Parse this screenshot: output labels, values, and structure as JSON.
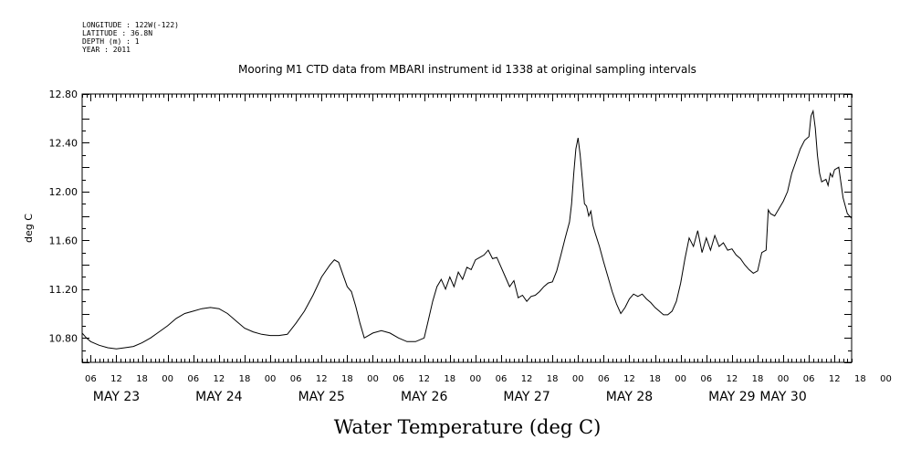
{
  "header": {
    "longitude": "LONGITUDE : 122W(-122)",
    "latitude": "LATITUDE : 36.8N",
    "depth": "DEPTH (m) : 1",
    "year": "YEAR : 2011"
  },
  "chart_data": {
    "type": "line",
    "title": "Mooring M1 CTD data from MBARI instrument id 1338 at original sampling intervals",
    "xlabel": "Water Temperature (deg C)",
    "ylabel": "deg C",
    "ylim": [
      10.6,
      12.8
    ],
    "yticks": [
      "10.80",
      "11.20",
      "11.60",
      "12.00",
      "12.40",
      "12.80"
    ],
    "x_hour_labels": [
      "06",
      "12",
      "18",
      "00",
      "06",
      "12",
      "18",
      "00",
      "06",
      "12",
      "18",
      "00",
      "06",
      "12",
      "18",
      "00",
      "06",
      "12",
      "18",
      "00",
      "06",
      "12",
      "18",
      "00",
      "06",
      "12",
      "18",
      "00",
      "06",
      "12",
      "18",
      "00"
    ],
    "x_day_labels": [
      "MAY 23",
      "MAY 24",
      "MAY 25",
      "MAY 26",
      "MAY 27",
      "MAY 28",
      "MAY 29",
      "MAY 30"
    ],
    "x_unit": "hours since 2011-05-23 00:00",
    "xlim": [
      4.0,
      184.0
    ],
    "grid": false,
    "series": [
      {
        "name": "",
        "points": [
          [
            4.0,
            10.84
          ],
          [
            5,
            10.8
          ],
          [
            6,
            10.77
          ],
          [
            8,
            10.74
          ],
          [
            10,
            10.72
          ],
          [
            12,
            10.71
          ],
          [
            14,
            10.72
          ],
          [
            16,
            10.73
          ],
          [
            18,
            10.76
          ],
          [
            20,
            10.8
          ],
          [
            22,
            10.85
          ],
          [
            24,
            10.9
          ],
          [
            26,
            10.96
          ],
          [
            28,
            11.0
          ],
          [
            30,
            11.02
          ],
          [
            32,
            11.04
          ],
          [
            34,
            11.05
          ],
          [
            36,
            11.04
          ],
          [
            38,
            11.0
          ],
          [
            40,
            10.94
          ],
          [
            42,
            10.88
          ],
          [
            44,
            10.85
          ],
          [
            46,
            10.83
          ],
          [
            48,
            10.82
          ],
          [
            50,
            10.82
          ],
          [
            52,
            10.83
          ],
          [
            54,
            10.92
          ],
          [
            56,
            11.02
          ],
          [
            58,
            11.15
          ],
          [
            60,
            11.3
          ],
          [
            62,
            11.4
          ],
          [
            63,
            11.44
          ],
          [
            64,
            11.42
          ],
          [
            65,
            11.32
          ],
          [
            66,
            11.22
          ],
          [
            67,
            11.18
          ],
          [
            68,
            11.06
          ],
          [
            69,
            10.92
          ],
          [
            70,
            10.8
          ],
          [
            72,
            10.84
          ],
          [
            74,
            10.86
          ],
          [
            76,
            10.84
          ],
          [
            78,
            10.8
          ],
          [
            80,
            10.77
          ],
          [
            82,
            10.77
          ],
          [
            84,
            10.8
          ],
          [
            85,
            10.95
          ],
          [
            86,
            11.1
          ],
          [
            87,
            11.22
          ],
          [
            88,
            11.28
          ],
          [
            89,
            11.2
          ],
          [
            90,
            11.3
          ],
          [
            91,
            11.22
          ],
          [
            92,
            11.34
          ],
          [
            93,
            11.28
          ],
          [
            94,
            11.38
          ],
          [
            95,
            11.36
          ],
          [
            96,
            11.44
          ],
          [
            97,
            11.46
          ],
          [
            98,
            11.48
          ],
          [
            99,
            11.52
          ],
          [
            100,
            11.45
          ],
          [
            101,
            11.46
          ],
          [
            102,
            11.38
          ],
          [
            103,
            11.3
          ],
          [
            104,
            11.22
          ],
          [
            105,
            11.27
          ],
          [
            106,
            11.13
          ],
          [
            107,
            11.15
          ],
          [
            108,
            11.1
          ],
          [
            109,
            11.14
          ],
          [
            110,
            11.15
          ],
          [
            111,
            11.18
          ],
          [
            112,
            11.22
          ],
          [
            113,
            11.25
          ],
          [
            114,
            11.26
          ],
          [
            115,
            11.35
          ],
          [
            116,
            11.48
          ],
          [
            117,
            11.62
          ],
          [
            118,
            11.75
          ],
          [
            118.5,
            11.9
          ],
          [
            119,
            12.15
          ],
          [
            119.5,
            12.35
          ],
          [
            120,
            12.44
          ],
          [
            120.5,
            12.3
          ],
          [
            121,
            12.1
          ],
          [
            121.5,
            11.9
          ],
          [
            122,
            11.88
          ],
          [
            122.5,
            11.8
          ],
          [
            123,
            11.84
          ],
          [
            123.5,
            11.72
          ],
          [
            124,
            11.66
          ],
          [
            125,
            11.55
          ],
          [
            126,
            11.42
          ],
          [
            127,
            11.3
          ],
          [
            128,
            11.18
          ],
          [
            129,
            11.08
          ],
          [
            130,
            11.0
          ],
          [
            131,
            11.05
          ],
          [
            132,
            11.12
          ],
          [
            133,
            11.16
          ],
          [
            134,
            11.14
          ],
          [
            135,
            11.16
          ],
          [
            136,
            11.12
          ],
          [
            137,
            11.09
          ],
          [
            138,
            11.05
          ],
          [
            139,
            11.02
          ],
          [
            140,
            10.99
          ],
          [
            141,
            10.99
          ],
          [
            142,
            11.02
          ],
          [
            143,
            11.1
          ],
          [
            144,
            11.25
          ],
          [
            145,
            11.45
          ],
          [
            146,
            11.62
          ],
          [
            147,
            11.55
          ],
          [
            148,
            11.68
          ],
          [
            149,
            11.5
          ],
          [
            150,
            11.62
          ],
          [
            151,
            11.52
          ],
          [
            152,
            11.64
          ],
          [
            153,
            11.55
          ],
          [
            154,
            11.58
          ],
          [
            155,
            11.52
          ],
          [
            156,
            11.53
          ],
          [
            157,
            11.48
          ],
          [
            158,
            11.45
          ],
          [
            159,
            11.4
          ],
          [
            160,
            11.36
          ],
          [
            161,
            11.33
          ],
          [
            162,
            11.35
          ],
          [
            163,
            11.5
          ],
          [
            164,
            11.52
          ],
          [
            164.5,
            11.85
          ],
          [
            165,
            11.82
          ],
          [
            166,
            11.8
          ],
          [
            167,
            11.86
          ],
          [
            168,
            11.92
          ],
          [
            169,
            12.0
          ],
          [
            170,
            12.15
          ],
          [
            171,
            12.25
          ],
          [
            172,
            12.35
          ],
          [
            173,
            12.42
          ],
          [
            174,
            12.45
          ],
          [
            174.5,
            12.62
          ],
          [
            175,
            12.66
          ],
          [
            175.5,
            12.52
          ],
          [
            176,
            12.3
          ],
          [
            176.5,
            12.15
          ],
          [
            177,
            12.08
          ],
          [
            178,
            12.1
          ],
          [
            178.5,
            12.05
          ],
          [
            179,
            12.15
          ],
          [
            179.5,
            12.12
          ],
          [
            180,
            12.18
          ],
          [
            181,
            12.2
          ],
          [
            182,
            11.95
          ],
          [
            183,
            11.82
          ],
          [
            184.0,
            11.78
          ]
        ]
      }
    ]
  }
}
